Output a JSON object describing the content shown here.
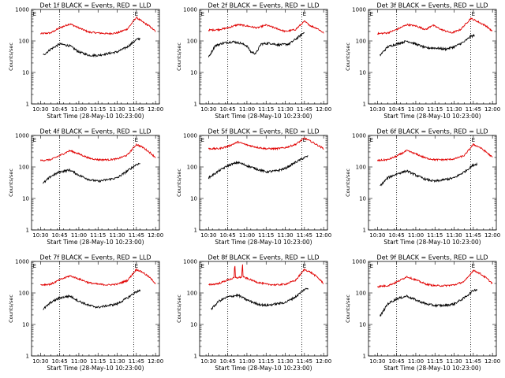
{
  "chart_data": {
    "type": "line",
    "grid": "3x3",
    "shared": {
      "xlabel": "Start Time (28-May-10 10:23:00)",
      "ylabel": "Counts/sec",
      "xticks": [
        "10:30",
        "10:45",
        "11:00",
        "11:15",
        "11:30",
        "11:45",
        "12:00"
      ],
      "xtick_minutes": [
        7,
        22,
        37,
        52,
        67,
        82,
        97
      ],
      "xlim_minutes": [
        0,
        100
      ],
      "yscale": "log",
      "ylim": [
        1,
        1000
      ],
      "yticks": [
        "1",
        "10",
        "100",
        "1000"
      ],
      "yticks_values": [
        1,
        10,
        100,
        1000
      ],
      "vlines_minutes": [
        22,
        80
      ],
      "marker_label": "E"
    },
    "panels": [
      {
        "title": "Det 1f BLACK = Events, RED = LLD",
        "series": [
          {
            "name": "LLD",
            "color": "#e00000",
            "x": [
              7,
              15,
              22,
              30,
              37,
              45,
              52,
              60,
              67,
              75,
              82,
              87,
              92,
              97
            ],
            "y": [
              170,
              180,
              260,
              350,
              260,
              190,
              180,
              170,
              180,
              240,
              560,
              400,
              300,
              200
            ]
          },
          {
            "name": "Events",
            "color": "#000000",
            "x": [
              9,
              15,
              22,
              30,
              37,
              45,
              52,
              60,
              67,
              75,
              82,
              85
            ],
            "y": [
              35,
              55,
              80,
              70,
              45,
              35,
              35,
              40,
              45,
              65,
              110,
              120
            ]
          }
        ]
      },
      {
        "title": "Det 2f BLACK = Events, RED = LLD",
        "series": [
          {
            "name": "LLD",
            "color": "#e00000",
            "x": [
              7,
              15,
              22,
              30,
              37,
              45,
              52,
              60,
              67,
              75,
              82,
              87,
              92,
              97
            ],
            "y": [
              220,
              230,
              260,
              330,
              300,
              260,
              320,
              250,
              200,
              230,
              420,
              300,
              250,
              180
            ]
          },
          {
            "name": "Events",
            "color": "#000000",
            "x": [
              7,
              12,
              18,
              26,
              32,
              37,
              40,
              44,
              48,
              55,
              62,
              70,
              78,
              82
            ],
            "y": [
              30,
              70,
              85,
              95,
              85,
              70,
              45,
              40,
              80,
              85,
              75,
              80,
              140,
              190
            ]
          }
        ]
      },
      {
        "title": "Det 3f BLACK = Events, RED = LLD",
        "series": [
          {
            "name": "LLD",
            "color": "#e00000",
            "x": [
              7,
              15,
              22,
              30,
              37,
              45,
              50,
              57,
              65,
              72,
              80,
              85,
              92,
              97
            ],
            "y": [
              170,
              180,
              230,
              330,
              300,
              230,
              320,
              230,
              180,
              230,
              520,
              420,
              300,
              200
            ]
          },
          {
            "name": "Events",
            "color": "#000000",
            "x": [
              9,
              15,
              22,
              30,
              37,
              45,
              52,
              60,
              67,
              75,
              80,
              83
            ],
            "y": [
              35,
              65,
              80,
              100,
              80,
              60,
              60,
              55,
              65,
              95,
              140,
              150
            ]
          }
        ]
      },
      {
        "title": "Det 4f BLACK = Events, RED = LLD",
        "series": [
          {
            "name": "LLD",
            "color": "#e00000",
            "x": [
              7,
              15,
              22,
              30,
              37,
              45,
              52,
              60,
              67,
              75,
              82,
              87,
              92,
              97
            ],
            "y": [
              160,
              170,
              230,
              330,
              260,
              190,
              170,
              170,
              180,
              240,
              520,
              420,
              300,
              200
            ]
          },
          {
            "name": "Events",
            "color": "#000000",
            "x": [
              9,
              15,
              22,
              30,
              37,
              45,
              52,
              60,
              67,
              75,
              82,
              85
            ],
            "y": [
              30,
              50,
              70,
              80,
              55,
              40,
              35,
              40,
              45,
              75,
              120,
              130
            ]
          }
        ]
      },
      {
        "title": "Det 5f BLACK = Events, RED = LLD",
        "series": [
          {
            "name": "LLD",
            "color": "#e00000",
            "x": [
              7,
              15,
              22,
              30,
              37,
              45,
              52,
              60,
              67,
              75,
              82,
              87,
              92,
              97
            ],
            "y": [
              380,
              380,
              450,
              620,
              500,
              420,
              380,
              380,
              410,
              520,
              820,
              650,
              500,
              380
            ]
          },
          {
            "name": "Events",
            "color": "#000000",
            "x": [
              7,
              15,
              22,
              30,
              37,
              45,
              52,
              60,
              67,
              75,
              82,
              85
            ],
            "y": [
              45,
              75,
              110,
              140,
              110,
              85,
              70,
              75,
              90,
              140,
              200,
              220
            ]
          }
        ]
      },
      {
        "title": "Det 6f BLACK = Events, RED = LLD",
        "series": [
          {
            "name": "LLD",
            "color": "#e00000",
            "x": [
              7,
              15,
              22,
              30,
              37,
              45,
              52,
              60,
              67,
              75,
              82,
              87,
              92,
              97
            ],
            "y": [
              160,
              170,
              220,
              330,
              260,
              190,
              170,
              170,
              180,
              230,
              520,
              420,
              300,
              200
            ]
          },
          {
            "name": "Events",
            "color": "#000000",
            "x": [
              9,
              15,
              22,
              30,
              37,
              45,
              52,
              60,
              67,
              75,
              82,
              85
            ],
            "y": [
              25,
              45,
              60,
              75,
              55,
              40,
              35,
              40,
              45,
              70,
              115,
              125
            ]
          }
        ]
      },
      {
        "title": "Det 7f BLACK = Events, RED = LLD",
        "series": [
          {
            "name": "LLD",
            "color": "#e00000",
            "x": [
              7,
              15,
              22,
              30,
              37,
              45,
              52,
              60,
              67,
              75,
              82,
              87,
              92,
              97
            ],
            "y": [
              180,
              190,
              260,
              350,
              280,
              210,
              190,
              180,
              190,
              250,
              560,
              450,
              320,
              200
            ]
          },
          {
            "name": "Events",
            "color": "#000000",
            "x": [
              9,
              15,
              22,
              30,
              37,
              45,
              52,
              60,
              67,
              75,
              82,
              85
            ],
            "y": [
              30,
              50,
              70,
              80,
              55,
              40,
              35,
              40,
              45,
              70,
              110,
              120
            ]
          }
        ]
      },
      {
        "title": "Det 8f BLACK = Events, RED = LLD",
        "series": [
          {
            "name": "LLD",
            "color": "#e00000",
            "x": [
              7,
              15,
              22,
              27,
              27.5,
              28,
              33,
              33.5,
              34,
              37,
              45,
              52,
              60,
              67,
              75,
              82,
              87,
              92,
              97
            ],
            "y": [
              180,
              200,
              260,
              300,
              1000,
              300,
              320,
              1000,
              320,
              290,
              220,
              190,
              180,
              190,
              250,
              560,
              450,
              320,
              200
            ]
          },
          {
            "name": "Events",
            "color": "#000000",
            "x": [
              9,
              15,
              22,
              30,
              37,
              45,
              52,
              60,
              67,
              75,
              82,
              85
            ],
            "y": [
              30,
              55,
              75,
              85,
              60,
              45,
              40,
              45,
              50,
              75,
              130,
              140
            ]
          }
        ]
      },
      {
        "title": "Det 9f BLACK = Events, RED = LLD",
        "series": [
          {
            "name": "LLD",
            "color": "#e00000",
            "x": [
              7,
              15,
              22,
              30,
              37,
              45,
              52,
              60,
              67,
              75,
              82,
              87,
              92,
              97
            ],
            "y": [
              160,
              170,
              220,
              330,
              260,
              190,
              170,
              170,
              180,
              230,
              520,
              420,
              300,
              200
            ]
          },
          {
            "name": "Events",
            "color": "#000000",
            "x": [
              9,
              15,
              22,
              30,
              37,
              45,
              52,
              60,
              67,
              75,
              82,
              85
            ],
            "y": [
              18,
              45,
              65,
              80,
              60,
              45,
              40,
              40,
              45,
              70,
              120,
              130
            ]
          }
        ]
      }
    ]
  }
}
